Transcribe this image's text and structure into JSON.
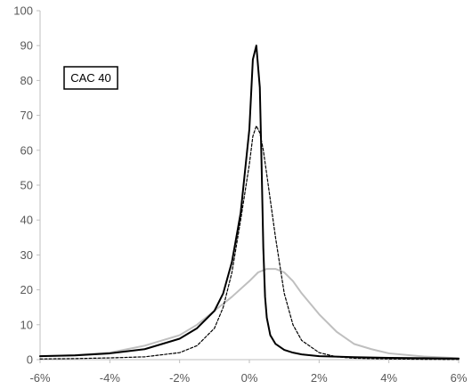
{
  "chart_data": {
    "type": "line",
    "title": "",
    "xlabel": "",
    "ylabel": "",
    "annotation": "CAC 40",
    "xlim": [
      -6,
      6
    ],
    "ylim": [
      0,
      100
    ],
    "x_ticks": [
      "-6%",
      "-4%",
      "-2%",
      "0%",
      "2%",
      "4%",
      "6%"
    ],
    "y_ticks": [
      "0",
      "10",
      "20",
      "30",
      "40",
      "50",
      "60",
      "70",
      "80",
      "90",
      "100"
    ],
    "grid": false,
    "series": [
      {
        "color": "#000000",
        "style": "solid",
        "x": [
          -6,
          -5,
          -4,
          -3,
          -2,
          -1.5,
          -1,
          -0.75,
          -0.5,
          -0.25,
          0,
          0.1,
          0.2,
          0.3,
          0.35,
          0.4,
          0.45,
          0.5,
          0.6,
          0.75,
          1,
          1.25,
          1.5,
          2,
          3,
          4,
          5,
          6
        ],
        "y": [
          1,
          1.2,
          1.8,
          3,
          6,
          9,
          14,
          19,
          28,
          42,
          66,
          86,
          90,
          78,
          56,
          32,
          18,
          12,
          7,
          4.5,
          2.8,
          2,
          1.5,
          1,
          0.7,
          0.5,
          0.4,
          0.3
        ]
      },
      {
        "color": "#000000",
        "style": "dashed",
        "x": [
          -6,
          -5,
          -4,
          -3,
          -2,
          -1.5,
          -1,
          -0.75,
          -0.5,
          -0.25,
          0,
          0.1,
          0.2,
          0.3,
          0.4,
          0.5,
          0.75,
          1,
          1.25,
          1.5,
          2,
          2.5,
          3,
          4,
          5,
          6
        ],
        "y": [
          0.2,
          0.3,
          0.5,
          0.8,
          2,
          4,
          9,
          15,
          25,
          40,
          56,
          64,
          67,
          65,
          60,
          53,
          35,
          19,
          10,
          5.5,
          2,
          0.8,
          0.4,
          0.2,
          0.1,
          0.05
        ]
      },
      {
        "color": "#bfbfbf",
        "style": "solid",
        "x": [
          -6,
          -5,
          -4,
          -3,
          -2,
          -1.5,
          -1,
          -0.5,
          0,
          0.25,
          0.5,
          0.75,
          1,
          1.25,
          1.5,
          2,
          2.5,
          3,
          3.5,
          4,
          5,
          6
        ],
        "y": [
          1,
          1.3,
          2,
          4,
          7,
          10,
          14,
          18,
          22.5,
          25,
          26,
          26,
          25,
          22.5,
          19,
          13,
          8,
          4.5,
          3,
          1.8,
          0.9,
          0.4
        ]
      }
    ]
  }
}
